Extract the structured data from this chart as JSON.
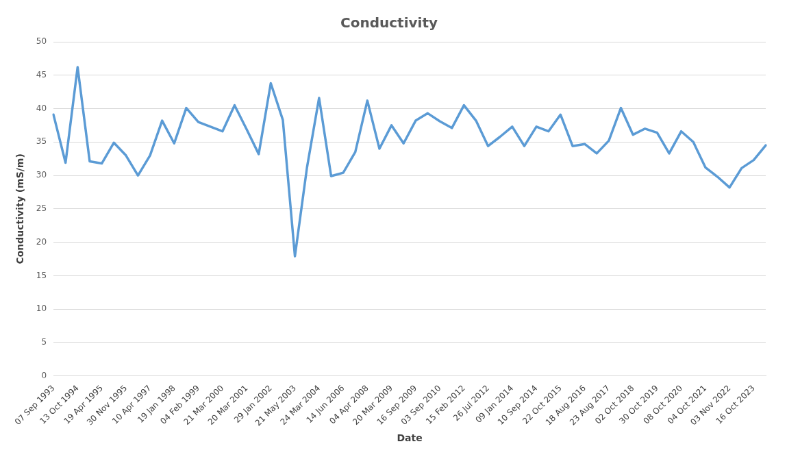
{
  "chart_data": {
    "type": "line",
    "title": "Conductivity",
    "xlabel": "Date",
    "ylabel": "Conductivity (mS/m)",
    "categories": [
      "07 Sep 1993",
      null,
      "13 Oct 1994",
      null,
      "19 Apr 1995",
      null,
      "30 Nov 1995",
      null,
      "10 Apr 1997",
      null,
      "19 Jan 1998",
      null,
      "04 Feb 1999",
      null,
      "21 Mar 2000",
      null,
      "20 Mar 2001",
      null,
      "29 Jan 2002",
      null,
      "21 May 2003",
      null,
      "24 Mar 2004",
      null,
      "14 Jun 2006",
      null,
      "04 Apr 2008",
      null,
      "20 Mar 2009",
      null,
      "16 Sep 2009",
      null,
      "03 Sep 2010",
      null,
      "15 Feb 2012",
      null,
      "26 Jul 2012",
      null,
      "09 Jan 2014",
      null,
      "10 Sep 2014",
      null,
      "22 Oct 2015",
      null,
      "18 Aug 2016",
      null,
      "23 Aug 2017",
      null,
      "02 Oct 2018",
      null,
      "30 Oct 2019",
      null,
      "08 Oct 2020",
      null,
      "04 Oct 2021",
      null,
      "03 Nov 2022",
      null,
      "16 Oct 2023",
      null
    ],
    "series": [
      {
        "color": "#5b9bd5",
        "values": [
          39.1,
          31.9,
          46.2,
          32.1,
          31.8,
          34.9,
          33.0,
          30.0,
          33.0,
          38.2,
          34.8,
          40.1,
          38.0,
          37.3,
          36.6,
          40.5,
          36.9,
          33.2,
          43.8,
          38.3,
          17.9,
          31.2,
          41.6,
          29.9,
          30.4,
          33.5,
          41.2,
          34.0,
          37.5,
          34.8,
          38.2,
          39.3,
          38.1,
          37.1,
          40.5,
          38.2,
          34.4,
          35.8,
          37.3,
          34.4,
          37.3,
          36.6,
          39.1,
          34.4,
          34.7,
          33.3,
          35.2,
          40.1,
          36.1,
          37.0,
          36.4,
          33.3,
          36.6,
          35.0,
          31.2,
          29.8,
          28.2,
          31.1,
          32.3,
          34.5
        ]
      }
    ],
    "ylim": [
      0,
      50
    ],
    "yticks": [
      0,
      5,
      10,
      15,
      20,
      25,
      30,
      35,
      40,
      45,
      50
    ],
    "grid": "y",
    "legend": false,
    "marker": "none",
    "line_style": "solid"
  }
}
